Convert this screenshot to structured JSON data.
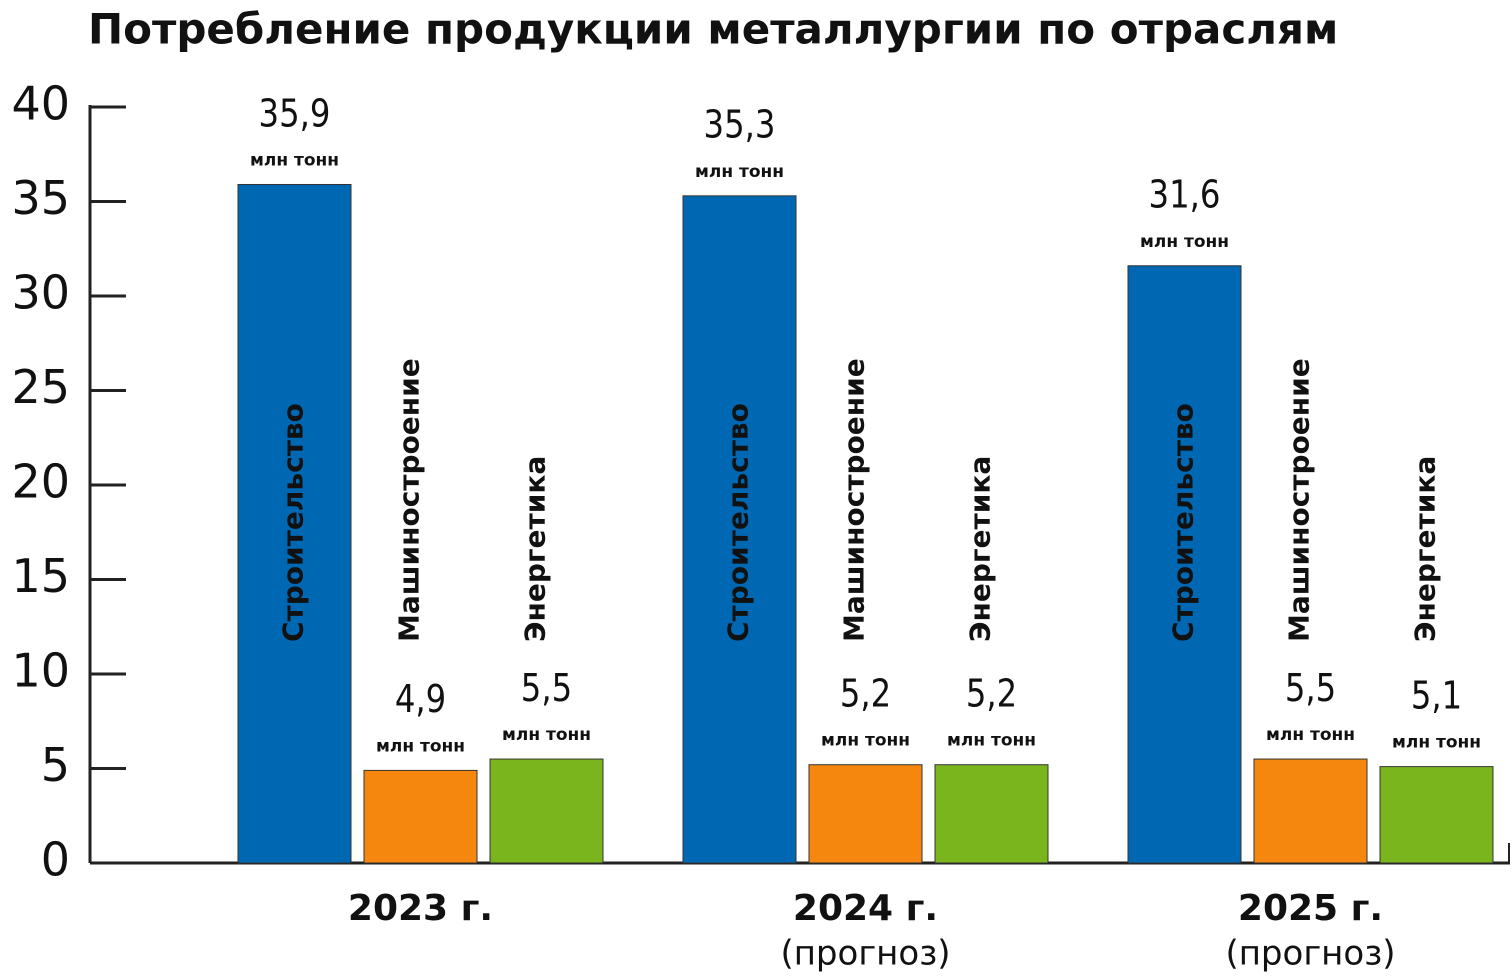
{
  "chart_data": {
    "type": "bar",
    "title": "Потребление продукции металлургии по отраслям",
    "categories": [
      "2023 г.",
      "2024 г.",
      "2025 г."
    ],
    "category_notes": [
      null,
      "(прогноз)",
      "(прогноз)"
    ],
    "value_unit": "млн тонн",
    "series": [
      {
        "name": "Строительство",
        "color": "#0068b3",
        "values": [
          35.9,
          35.3,
          31.6
        ],
        "value_labels": [
          "35,9",
          "35,3",
          "31,6"
        ]
      },
      {
        "name": "Машиностроение",
        "color": "#f5870f",
        "values": [
          4.9,
          5.2,
          5.5
        ],
        "value_labels": [
          "4,9",
          "5,2",
          "5,5"
        ]
      },
      {
        "name": "Энергетика",
        "color": "#7ab51d",
        "values": [
          5.5,
          5.2,
          5.1
        ],
        "value_labels": [
          "5,5",
          "5,2",
          "5,1"
        ]
      }
    ],
    "ylim": [
      0,
      40
    ],
    "yticks": [
      0,
      5,
      10,
      15,
      20,
      25,
      30,
      35,
      40
    ],
    "grid": false
  }
}
